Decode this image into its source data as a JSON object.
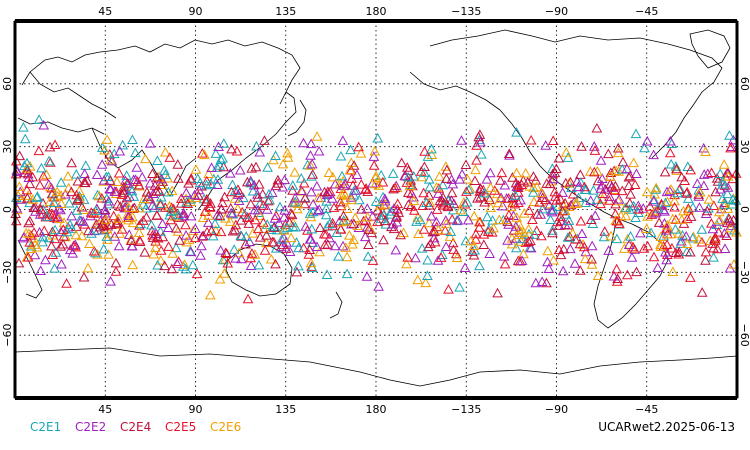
{
  "map": {
    "projection": "equirectangular",
    "lon_center": 180,
    "lat_range": [
      -90,
      90
    ],
    "lon_ticks": [
      {
        "value": 45,
        "label": "45"
      },
      {
        "value": 90,
        "label": "90"
      },
      {
        "value": 135,
        "label": "135"
      },
      {
        "value": 180,
        "label": "180"
      },
      {
        "value": 225,
        "label": "−135"
      },
      {
        "value": 270,
        "label": "−90"
      },
      {
        "value": 315,
        "label": "−45"
      }
    ],
    "lat_ticks": [
      {
        "value": 60,
        "label": "60"
      },
      {
        "value": 30,
        "label": "30"
      },
      {
        "value": 0,
        "label": "0"
      },
      {
        "value": -30,
        "label": "−30"
      },
      {
        "value": -60,
        "label": "−60"
      }
    ],
    "gridlines": true,
    "coastline_color": "#000000",
    "marker_shape": "open-triangle",
    "occultation_band_lat": [
      -45,
      45
    ]
  },
  "legend": [
    {
      "label": "C2E1",
      "color": "#1aa6b7"
    },
    {
      "label": "C2E2",
      "color": "#a020c0"
    },
    {
      "label": "C2E4",
      "color": "#c0103a"
    },
    {
      "label": "C2E5",
      "color": "#e8102a"
    },
    {
      "label": "C2E6",
      "color": "#f0a000"
    }
  ],
  "footer": {
    "product": "UCARwet2",
    "date": "2025-06-13",
    "label": "UCARwet2.2025-06-13"
  }
}
